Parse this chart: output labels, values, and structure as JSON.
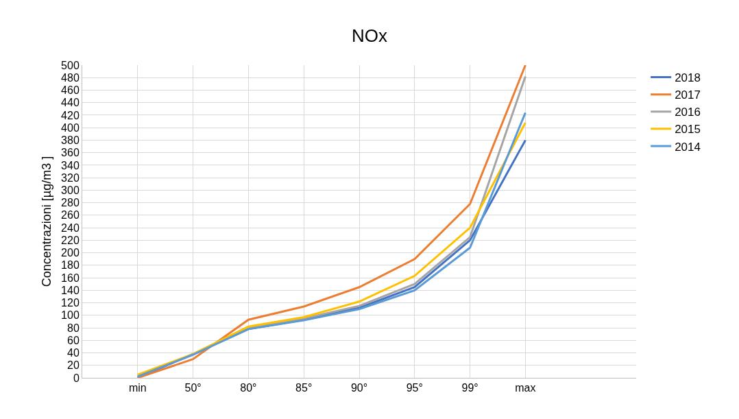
{
  "chart_data": {
    "type": "line",
    "title": "NOx",
    "ylabel": "Concentrazioni [µg/m3 ]",
    "categories": [
      "min",
      "50°",
      "80°",
      "85°",
      "90°",
      "95°",
      "99°",
      "max"
    ],
    "series": [
      {
        "name": "2018",
        "color": "#4472c4",
        "values": [
          0,
          38,
          78,
          93,
          112,
          145,
          220,
          380
        ]
      },
      {
        "name": "2017",
        "color": "#ed7d31",
        "values": [
          0,
          30,
          93,
          114,
          145,
          190,
          278,
          500
        ]
      },
      {
        "name": "2016",
        "color": "#a5a5a5",
        "values": [
          2,
          38,
          80,
          95,
          115,
          150,
          225,
          482
        ]
      },
      {
        "name": "2015",
        "color": "#ffc000",
        "values": [
          5,
          38,
          82,
          97,
          122,
          163,
          240,
          408
        ]
      },
      {
        "name": "2014",
        "color": "#5b9bd5",
        "values": [
          2,
          37,
          78,
          92,
          110,
          140,
          208,
          424
        ]
      }
    ],
    "ylim": [
      0,
      500
    ],
    "yticks": [
      0,
      20,
      40,
      60,
      80,
      100,
      120,
      140,
      160,
      180,
      200,
      220,
      240,
      260,
      280,
      300,
      320,
      340,
      360,
      380,
      400,
      420,
      440,
      460,
      480,
      500
    ],
    "grid": true,
    "legend": "right",
    "marker": "none",
    "line_style": "solid"
  }
}
